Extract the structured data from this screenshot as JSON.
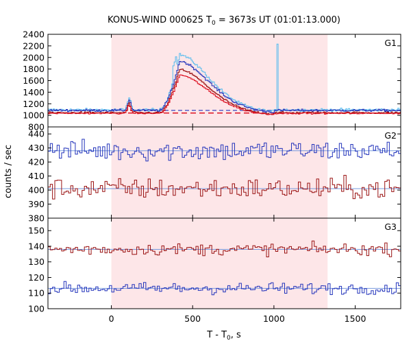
{
  "chart_data": {
    "type": "line",
    "title": {
      "prefix": "KONUS-WIND 000625 T",
      "sub": "0",
      "suffix": " = 3673s UT (01:01:13.000)"
    },
    "xlabel": {
      "prefix": "T - T",
      "sub": "0",
      "suffix": ", s"
    },
    "ylabel": "counts / sec",
    "xlim": [
      -390,
      1780
    ],
    "xticks": [
      0,
      500,
      1000,
      1500
    ],
    "highlight_interval": [
      0,
      1330
    ],
    "colors": {
      "highlight": "#fde6e8",
      "blue": "#2233bb",
      "light_blue": "#55bbee",
      "dark_red": "#991111",
      "red": "#dd1122",
      "background_fit": "#7799dd"
    },
    "panels": [
      {
        "label": "G1",
        "ylim": [
          800,
          2400
        ],
        "yticks": [
          800,
          1000,
          1200,
          1400,
          1600,
          1800,
          2000,
          2200,
          2400
        ],
        "peak_approx": 2080,
        "spike": {
          "x": 1020,
          "y": 2230
        }
      },
      {
        "label": "G2",
        "ylim": [
          380,
          445
        ],
        "yticks": [
          380,
          390,
          400,
          410,
          420,
          430,
          440
        ],
        "series_levels": [
          428,
          401
        ]
      },
      {
        "label": "G3",
        "ylim": [
          100,
          158
        ],
        "yticks": [
          100,
          110,
          120,
          130,
          140,
          150
        ],
        "series_levels": [
          138,
          113
        ]
      }
    ]
  }
}
